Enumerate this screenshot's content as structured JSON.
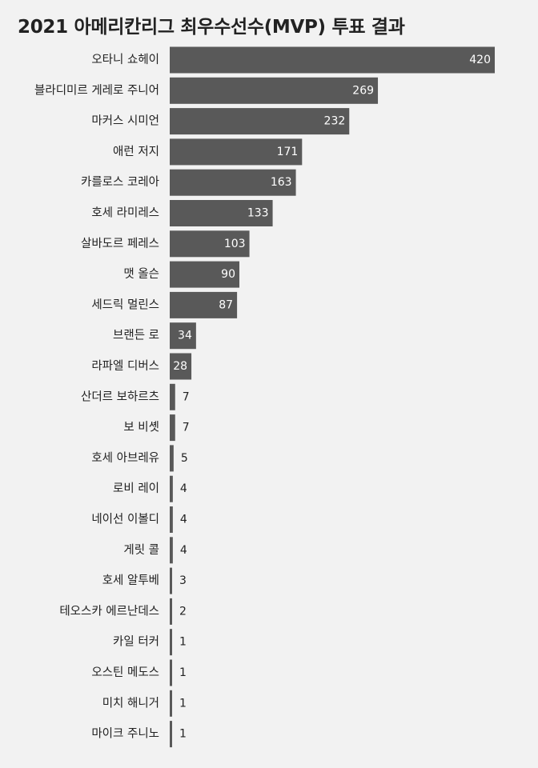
{
  "chart_data": {
    "type": "bar",
    "orientation": "horizontal",
    "title": "2021 아메리칸리그 최우수선수(MVP) 투표 결과",
    "categories": [
      "오타니 쇼헤이",
      "블라디미르 게레로 주니어",
      "마커스 시미언",
      "애런 저지",
      "카를로스 코레아",
      "호세 라미레스",
      "살바도르 페레스",
      "맷 올슨",
      "세드릭 멀린스",
      "브랜든 로",
      "라파엘 디버스",
      "산더르 보하르츠",
      "보 비솃",
      "호세 아브레유",
      "로비 레이",
      "네이선 이볼디",
      "게릿 콜",
      "호세 알투베",
      "테오스카 에르난데스",
      "카일 터커",
      "오스틴 메도스",
      "미치 해니거",
      "마이크 주니노"
    ],
    "values": [
      420,
      269,
      232,
      171,
      163,
      133,
      103,
      90,
      87,
      34,
      28,
      7,
      7,
      5,
      4,
      4,
      4,
      3,
      2,
      1,
      1,
      1,
      1
    ],
    "xlim": [
      0,
      420
    ],
    "bar_color": "#595959",
    "label_color_inside": "#ffffff",
    "label_color_outside": "#222222",
    "background": "#f2f2f2",
    "grid": false,
    "legend": "none",
    "data_labels": true
  }
}
